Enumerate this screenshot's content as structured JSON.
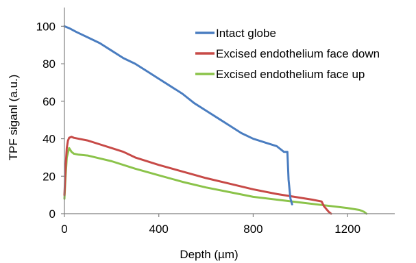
{
  "chart_data": {
    "type": "line",
    "title": "",
    "xlabel": "Depth (µm)",
    "ylabel": "TPF siganl (a.u.)",
    "xlim": [
      0,
      1400
    ],
    "ylim": [
      0,
      110
    ],
    "xticks": [
      0,
      400,
      800,
      1200
    ],
    "yticks": [
      0,
      20,
      40,
      60,
      80,
      100
    ],
    "grid": false,
    "legend_position": "top-right",
    "series": [
      {
        "name": "Intact globe",
        "color": "#4a7dc0",
        "x": [
          0,
          20,
          50,
          100,
          150,
          200,
          250,
          300,
          350,
          400,
          450,
          500,
          550,
          600,
          650,
          700,
          750,
          800,
          850,
          900,
          930,
          945,
          950,
          958,
          965
        ],
        "y": [
          100,
          99,
          97,
          94,
          91,
          87,
          83,
          80,
          76,
          72,
          68,
          64,
          59,
          55,
          51,
          47,
          43,
          40,
          38,
          36,
          33,
          33,
          18,
          8,
          5
        ]
      },
      {
        "name": "Excised endothelium face down",
        "color": "#c74a47",
        "x": [
          0,
          5,
          10,
          15,
          20,
          30,
          40,
          60,
          100,
          150,
          200,
          250,
          300,
          400,
          500,
          600,
          700,
          800,
          900,
          1000,
          1050,
          1090,
          1100,
          1110,
          1120,
          1130
        ],
        "y": [
          10,
          25,
          35,
          39,
          40.5,
          41,
          40.5,
          40,
          39,
          37,
          35,
          33,
          30,
          26,
          22.5,
          19,
          16,
          13,
          10.5,
          8.5,
          7.5,
          6.5,
          4,
          2.5,
          1,
          0
        ]
      },
      {
        "name": "Excised endothelium face up",
        "color": "#8bc34a",
        "x": [
          0,
          5,
          10,
          20,
          30,
          40,
          60,
          100,
          150,
          200,
          300,
          400,
          500,
          600,
          700,
          800,
          900,
          1000,
          1100,
          1200,
          1250,
          1270,
          1280
        ],
        "y": [
          8,
          20,
          30,
          35,
          33,
          32,
          31.5,
          31,
          29.5,
          28,
          24,
          20.5,
          17,
          14,
          11.5,
          9,
          7.5,
          6,
          4.5,
          3,
          2,
          1,
          0
        ]
      }
    ]
  }
}
